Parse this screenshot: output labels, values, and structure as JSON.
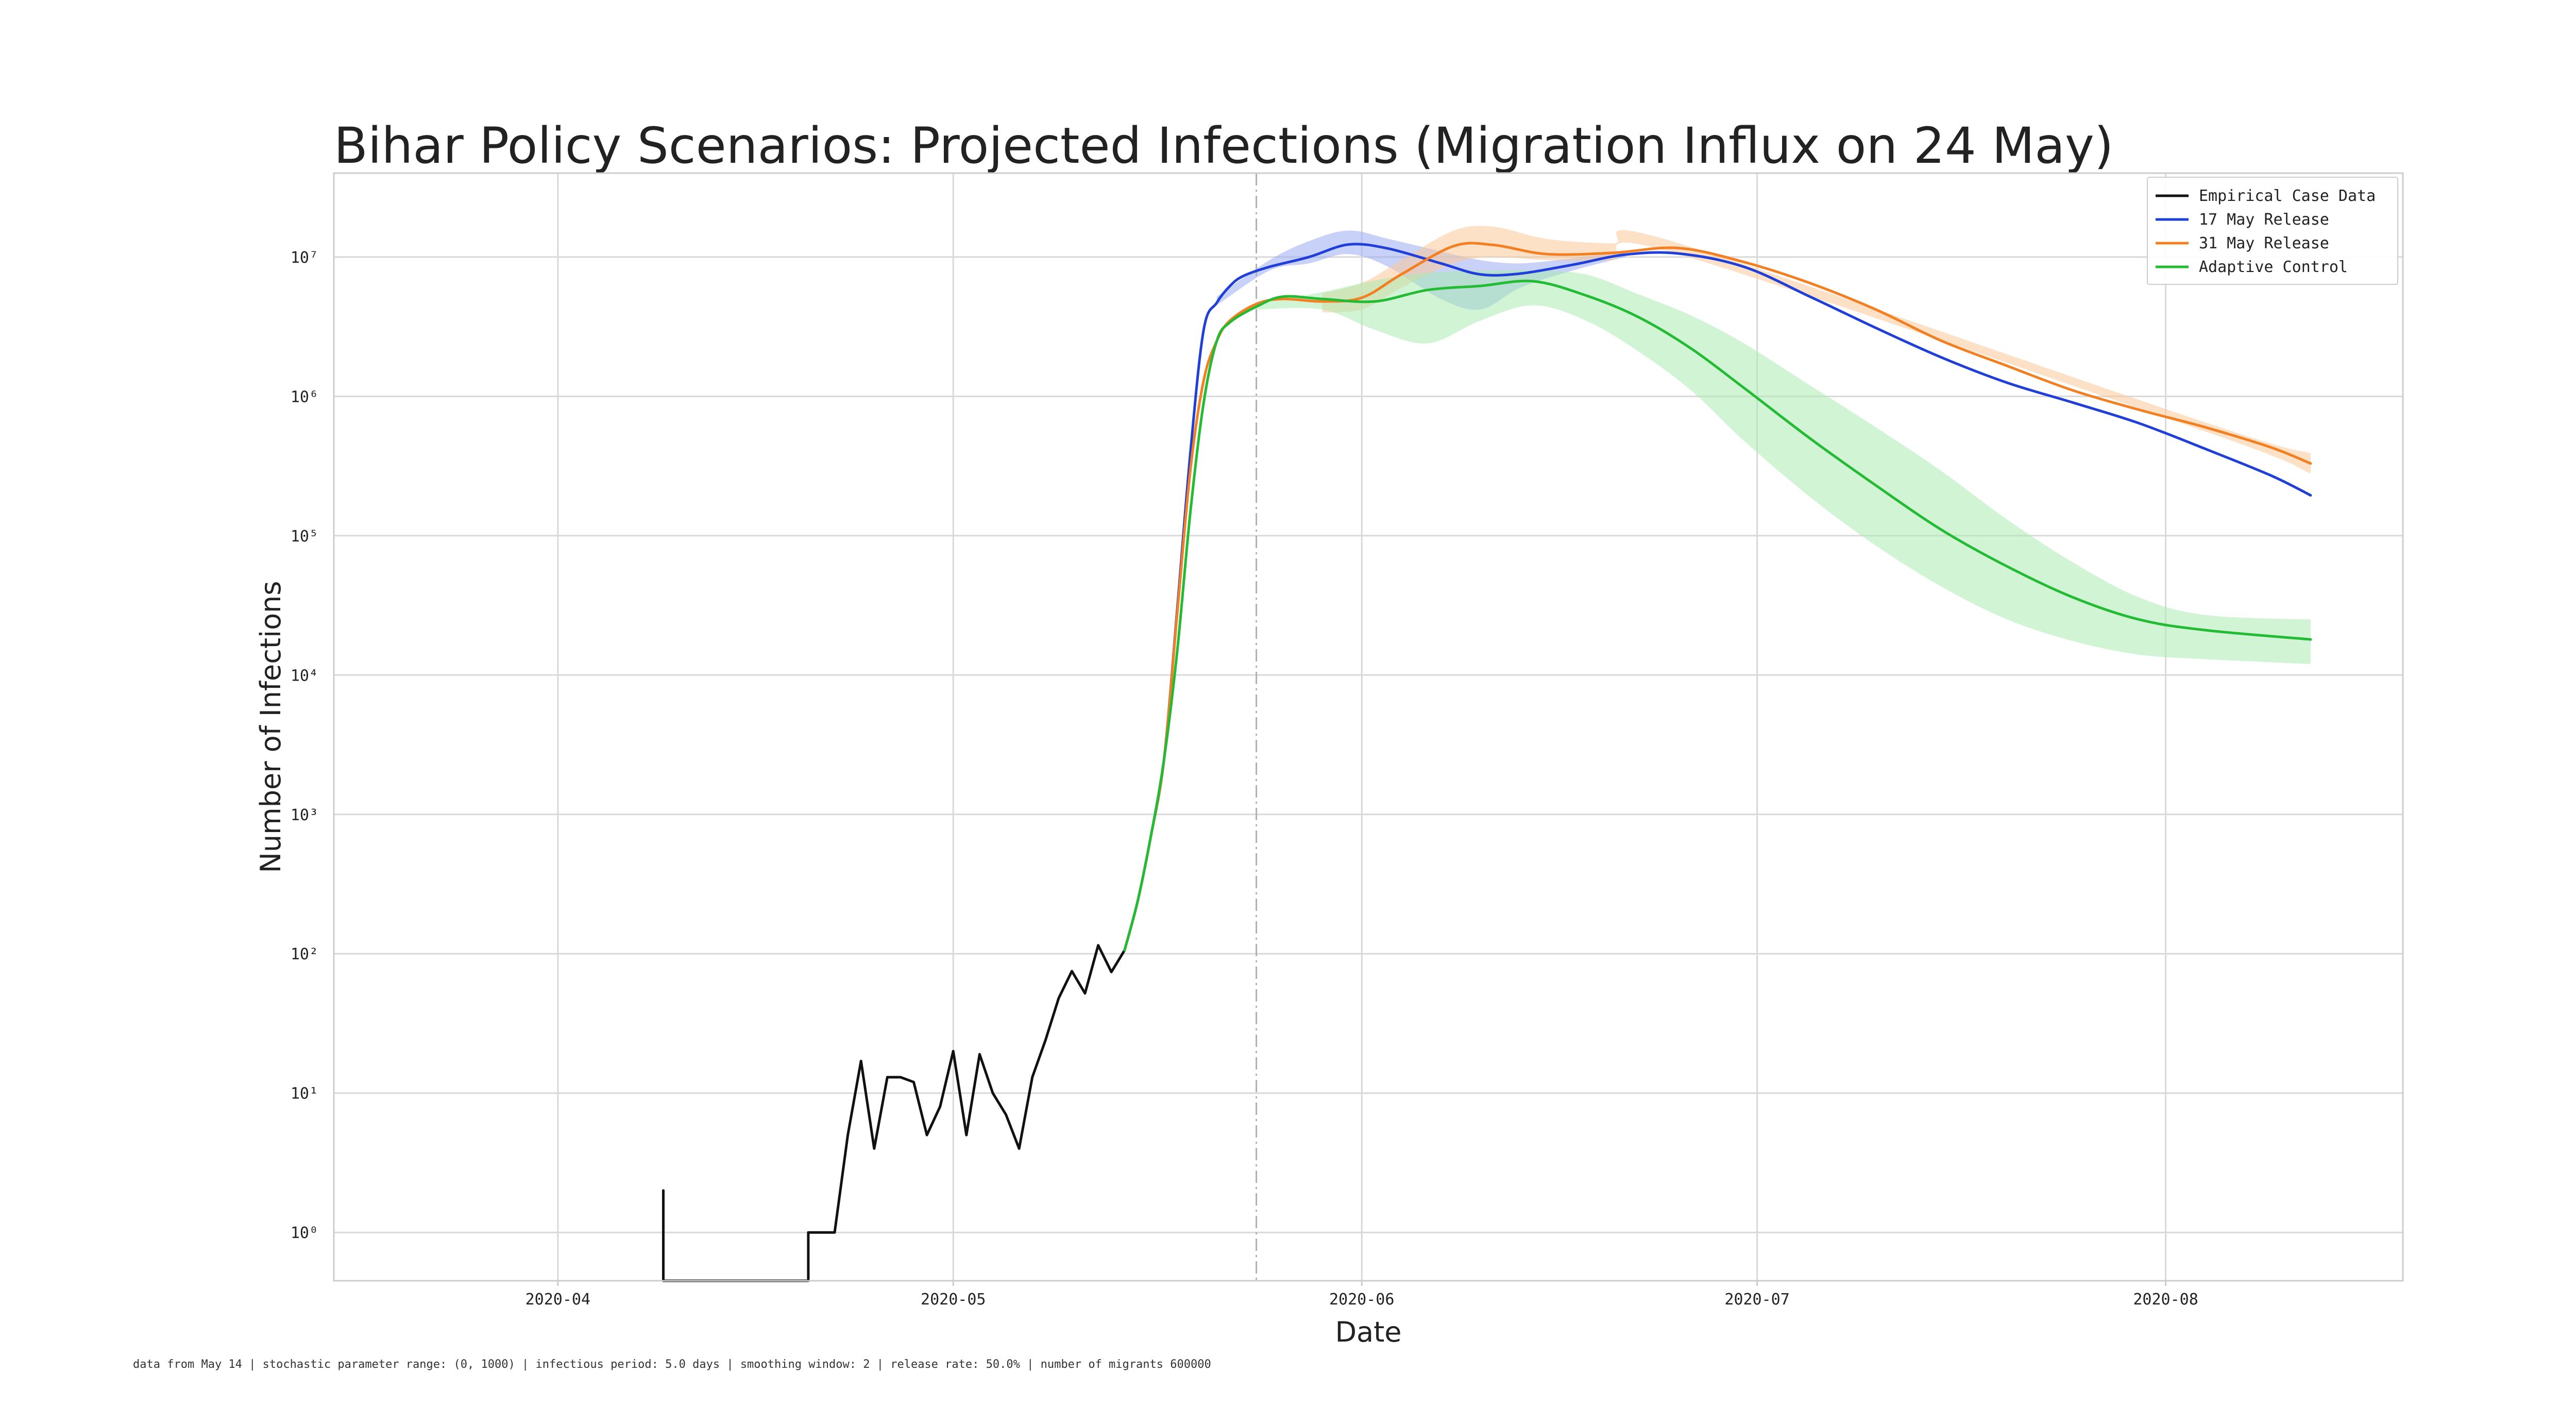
{
  "chart_data": {
    "type": "line",
    "title": "Bihar Policy Scenarios: Projected Infections (Migration Influx on 24 May)",
    "xlabel": "Date",
    "ylabel": "Number of Infections",
    "yscale": "log",
    "xlim": [
      "2020-03-15",
      "2020-08-19"
    ],
    "ylim": [
      0.45,
      40000000
    ],
    "grid": true,
    "legend_position": "top-right",
    "x_ticks": [
      {
        "date": "2020-04-01",
        "label": "2020-04"
      },
      {
        "date": "2020-05-01",
        "label": "2020-05"
      },
      {
        "date": "2020-06-01",
        "label": "2020-06"
      },
      {
        "date": "2020-07-01",
        "label": "2020-07"
      },
      {
        "date": "2020-08-01",
        "label": "2020-08"
      }
    ],
    "y_ticks": [
      {
        "value": 1,
        "label": "10⁰"
      },
      {
        "value": 10,
        "label": "10¹"
      },
      {
        "value": 100,
        "label": "10²"
      },
      {
        "value": 1000,
        "label": "10³"
      },
      {
        "value": 10000,
        "label": "10⁴"
      },
      {
        "value": 100000,
        "label": "10⁵"
      },
      {
        "value": 1000000,
        "label": "10⁶"
      },
      {
        "value": 10000000,
        "label": "10⁷"
      }
    ],
    "vline": {
      "date": "2020-05-24",
      "style": "dash-dot",
      "color": "#b0b0b0"
    },
    "series": [
      {
        "name": "Empirical Case Data",
        "color": "#111111",
        "points": [
          [
            "2020-04-09",
            0.4
          ],
          [
            "2020-04-09",
            2
          ],
          [
            "2020-04-09",
            0.4
          ],
          [
            "2020-04-20",
            0.4
          ],
          [
            "2020-04-20",
            1
          ],
          [
            "2020-04-21",
            1
          ],
          [
            "2020-04-22",
            1
          ],
          [
            "2020-04-23",
            5
          ],
          [
            "2020-04-24",
            17
          ],
          [
            "2020-04-25",
            4
          ],
          [
            "2020-04-26",
            13
          ],
          [
            "2020-04-27",
            13
          ],
          [
            "2020-04-28",
            12
          ],
          [
            "2020-04-29",
            5
          ],
          [
            "2020-04-30",
            8
          ],
          [
            "2020-05-01",
            20
          ],
          [
            "2020-05-02",
            5
          ],
          [
            "2020-05-03",
            19
          ],
          [
            "2020-05-04",
            10
          ],
          [
            "2020-05-05",
            7
          ],
          [
            "2020-05-06",
            4
          ],
          [
            "2020-05-07",
            13
          ],
          [
            "2020-05-08",
            24
          ],
          [
            "2020-05-09",
            48
          ],
          [
            "2020-05-10",
            75
          ],
          [
            "2020-05-11",
            52
          ],
          [
            "2020-05-12",
            115
          ],
          [
            "2020-05-13",
            74
          ],
          [
            "2020-05-14",
            106
          ]
        ]
      },
      {
        "name": "17 May Release",
        "color": "#1f3fd8",
        "band_color": "#9aabf2",
        "points": [
          [
            "2020-05-14",
            106
          ],
          [
            "2020-05-15",
            240
          ],
          [
            "2020-05-16",
            700
          ],
          [
            "2020-05-17",
            2500
          ],
          [
            "2020-05-18",
            30000
          ],
          [
            "2020-05-19",
            400000
          ],
          [
            "2020-05-20",
            3000000
          ],
          [
            "2020-05-21",
            4700000
          ],
          [
            "2020-05-22",
            6200000
          ],
          [
            "2020-05-23",
            7300000
          ],
          [
            "2020-05-25",
            8500000
          ],
          [
            "2020-05-28",
            10000000
          ],
          [
            "2020-05-31",
            12300000
          ],
          [
            "2020-06-03",
            11500000
          ],
          [
            "2020-06-07",
            9000000
          ],
          [
            "2020-06-10",
            7500000
          ],
          [
            "2020-06-13",
            7600000
          ],
          [
            "2020-06-17",
            8800000
          ],
          [
            "2020-06-21",
            10400000
          ],
          [
            "2020-06-25",
            10600000
          ],
          [
            "2020-06-30",
            8500000
          ],
          [
            "2020-07-05",
            5200000
          ],
          [
            "2020-07-10",
            3100000
          ],
          [
            "2020-07-15",
            1900000
          ],
          [
            "2020-07-20",
            1250000
          ],
          [
            "2020-07-25",
            900000
          ],
          [
            "2020-07-30",
            640000
          ],
          [
            "2020-08-04",
            420000
          ],
          [
            "2020-08-09",
            270000
          ],
          [
            "2020-08-12",
            195000
          ]
        ],
        "band": [
          [
            "2020-05-21",
            4500000,
            5200000
          ],
          [
            "2020-05-25",
            8000000,
            9500000
          ],
          [
            "2020-05-28",
            9000000,
            13000000
          ],
          [
            "2020-05-31",
            10500000,
            15500000
          ],
          [
            "2020-06-03",
            8500000,
            13500000
          ],
          [
            "2020-06-07",
            5000000,
            11000000
          ],
          [
            "2020-06-10",
            4200000,
            9500000
          ],
          [
            "2020-06-13",
            6000000,
            9000000
          ],
          [
            "2020-06-17",
            8000000,
            9800000
          ],
          [
            "2020-06-21",
            10000000,
            11000000
          ]
        ]
      },
      {
        "name": "31 May Release",
        "color": "#f28022",
        "band_color": "#f9c999",
        "points": [
          [
            "2020-05-14",
            106
          ],
          [
            "2020-05-15",
            240
          ],
          [
            "2020-05-16",
            700
          ],
          [
            "2020-05-17",
            2500
          ],
          [
            "2020-05-18",
            28000
          ],
          [
            "2020-05-19",
            300000
          ],
          [
            "2020-05-20",
            1300000
          ],
          [
            "2020-05-21",
            2500000
          ],
          [
            "2020-05-22",
            3500000
          ],
          [
            "2020-05-24",
            4600000
          ],
          [
            "2020-05-26",
            5000000
          ],
          [
            "2020-05-29",
            4800000
          ],
          [
            "2020-06-01",
            5100000
          ],
          [
            "2020-06-04",
            7500000
          ],
          [
            "2020-06-08",
            12000000
          ],
          [
            "2020-06-11",
            12200000
          ],
          [
            "2020-06-15",
            10500000
          ],
          [
            "2020-06-20",
            10700000
          ],
          [
            "2020-06-25",
            11600000
          ],
          [
            "2020-06-30",
            9200000
          ],
          [
            "2020-07-05",
            6500000
          ],
          [
            "2020-07-10",
            4200000
          ],
          [
            "2020-07-15",
            2500000
          ],
          [
            "2020-07-20",
            1650000
          ],
          [
            "2020-07-25",
            1100000
          ],
          [
            "2020-07-30",
            800000
          ],
          [
            "2020-08-04",
            600000
          ],
          [
            "2020-08-09",
            430000
          ],
          [
            "2020-08-12",
            330000
          ]
        ],
        "band": [
          [
            "2020-05-29",
            4000000,
            5500000
          ],
          [
            "2020-06-01",
            4200000,
            6500000
          ],
          [
            "2020-06-04",
            6000000,
            9500000
          ],
          [
            "2020-06-08",
            9000000,
            15500000
          ],
          [
            "2020-06-11",
            10000000,
            16500000
          ],
          [
            "2020-06-15",
            9500000,
            13500000
          ],
          [
            "2020-06-20",
            9500000,
            12500000
          ],
          [
            "2020-06-25",
            10500000,
            12600000
          ],
          [
            "2020-08-04",
            560000,
            650000
          ],
          [
            "2020-08-12",
            280000,
            390000
          ]
        ]
      },
      {
        "name": "Adaptive Control",
        "color": "#22bb33",
        "band_color": "#a9ebb0",
        "points": [
          [
            "2020-05-14",
            106
          ],
          [
            "2020-05-15",
            240
          ],
          [
            "2020-05-16",
            700
          ],
          [
            "2020-05-17",
            2500
          ],
          [
            "2020-05-18",
            15000
          ],
          [
            "2020-05-19",
            150000
          ],
          [
            "2020-05-20",
            900000
          ],
          [
            "2020-05-21",
            2500000
          ],
          [
            "2020-05-22",
            3400000
          ],
          [
            "2020-05-24",
            4400000
          ],
          [
            "2020-05-26",
            5200000
          ],
          [
            "2020-05-29",
            5000000
          ],
          [
            "2020-06-02",
            4800000
          ],
          [
            "2020-06-06",
            5800000
          ],
          [
            "2020-06-10",
            6200000
          ],
          [
            "2020-06-14",
            6700000
          ],
          [
            "2020-06-18",
            5300000
          ],
          [
            "2020-06-22",
            3700000
          ],
          [
            "2020-06-26",
            2200000
          ],
          [
            "2020-06-30",
            1150000
          ],
          [
            "2020-07-05",
            500000
          ],
          [
            "2020-07-10",
            230000
          ],
          [
            "2020-07-15",
            110000
          ],
          [
            "2020-07-20",
            60000
          ],
          [
            "2020-07-25",
            36000
          ],
          [
            "2020-07-30",
            25000
          ],
          [
            "2020-08-04",
            21000
          ],
          [
            "2020-08-12",
            18000
          ]
        ],
        "band": [
          [
            "2020-05-24",
            4200000,
            4600000
          ],
          [
            "2020-05-29",
            4200000,
            5600000
          ],
          [
            "2020-06-02",
            3000000,
            6800000
          ],
          [
            "2020-06-06",
            2400000,
            7700000
          ],
          [
            "2020-06-10",
            3500000,
            8000000
          ],
          [
            "2020-06-14",
            4500000,
            8000000
          ],
          [
            "2020-06-18",
            3500000,
            7500000
          ],
          [
            "2020-06-22",
            2100000,
            5400000
          ],
          [
            "2020-06-26",
            1100000,
            3800000
          ],
          [
            "2020-06-30",
            480000,
            2400000
          ],
          [
            "2020-07-05",
            190000,
            1200000
          ],
          [
            "2020-07-10",
            85000,
            600000
          ],
          [
            "2020-07-15",
            43000,
            290000
          ],
          [
            "2020-07-20",
            25000,
            130000
          ],
          [
            "2020-07-25",
            17500,
            64000
          ],
          [
            "2020-07-30",
            14000,
            36000
          ],
          [
            "2020-08-04",
            13000,
            27000
          ],
          [
            "2020-08-12",
            12000,
            25000
          ]
        ]
      }
    ]
  },
  "footnote": "data from May 14 | stochastic parameter range: (0, 1000) | infectious period: 5.0 days | smoothing window: 2 | release rate: 50.0% | number of migrants 600000"
}
